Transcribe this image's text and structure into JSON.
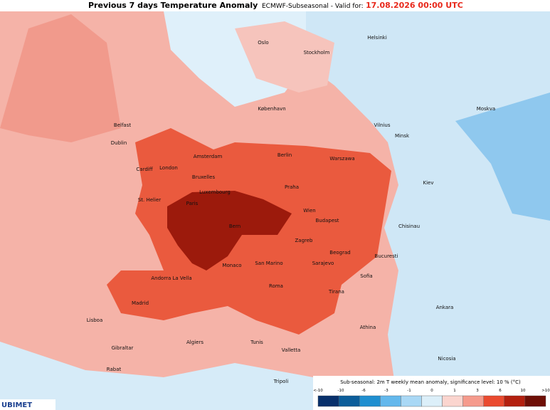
{
  "header": {
    "title": "Previous 7 days Temperature Anomaly",
    "model": "ECMWF-Subseasonal - Valid for:",
    "valid": "17.08.2026 00:00 UTC"
  },
  "cities": [
    "Helsinki",
    "Oslo",
    "Stockholm",
    "Moskva",
    "København",
    "Vilnius",
    "Minsk",
    "Belfast",
    "Dublin",
    "Berlin",
    "Amsterdam",
    "Warszawa",
    "Cardiff",
    "London",
    "Bruxelles",
    "Kiev",
    "Praha",
    "Luxembourg",
    "St. Helier",
    "Paris",
    "Wien",
    "Chisinau",
    "Budapest",
    "Bern",
    "Zagreb",
    "Beograd",
    "Bucuresti",
    "Monaco",
    "San Marino",
    "Sarajevo",
    "Andorra La Vella",
    "Sofia",
    "Roma",
    "Tirana",
    "Madrid",
    "Ankara",
    "Lisboa",
    "Athina",
    "Gibraltar",
    "Algiers",
    "Tunis",
    "Valletta",
    "Nicosia",
    "Rabat",
    "Tripoli"
  ],
  "legend": {
    "caption": "Sub-seasonal: 2m T weekly mean anomaly, significance level: 10 % (°C)",
    "labels": [
      "<-10",
      "-10",
      "-6",
      "-3",
      "-1",
      "0",
      "1",
      "3",
      "6",
      "10",
      ">10"
    ],
    "colors": [
      "#08306b",
      "#0b5d9a",
      "#1f8fd0",
      "#63b8ec",
      "#a9d8f5",
      "#dceff9",
      "#fbd5cf",
      "#f59a8c",
      "#ea4a2f",
      "#b3200f",
      "#6e0f06"
    ]
  },
  "logo": "UBIMET"
}
